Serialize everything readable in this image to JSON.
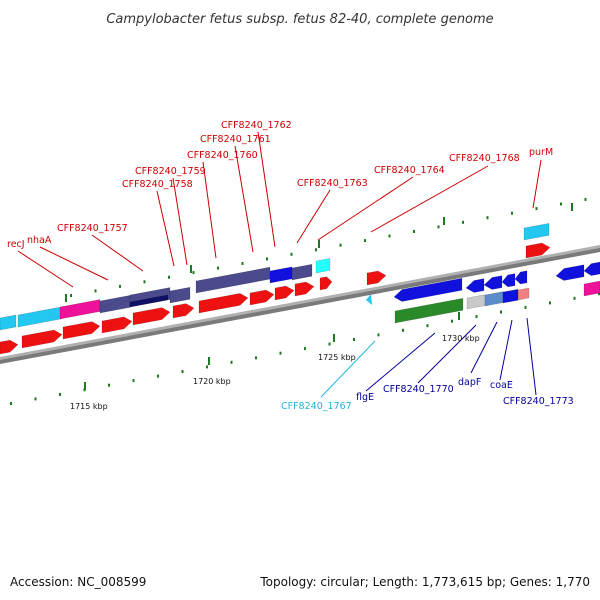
{
  "title": "Campylobacter fetus subsp. fetus 82-40, complete genome",
  "footer": {
    "accession": "Accession: NC_008599",
    "summary": "Topology: circular; Length: 1,773,615 bp; Genes: 1,770"
  },
  "colors": {
    "backbone": "#808080",
    "tick": "#1e7a1e",
    "upper_label": "#cc0000",
    "lower_label": "#00009a",
    "cyan_label": "#22b5dd",
    "red": "#ee1111",
    "cyan": "#22c8f0",
    "pink": "#ee1199",
    "slate": "#4a4a8c",
    "navy": "#101066",
    "blue": "#1111dd",
    "green": "#2a8a2a",
    "gray": "#c8c8c8",
    "steel": "#5b8ccc",
    "salmon": "#f08080",
    "aqua": "#22ffff"
  },
  "scale_labels": [
    {
      "text": "1715 kbp"
    },
    {
      "text": "1720 kbp"
    },
    {
      "text": "1725 kbp"
    },
    {
      "text": "1730 kbp"
    }
  ],
  "upper_gene_labels": [
    {
      "text": "recJ"
    },
    {
      "text": "nhaA"
    },
    {
      "text": "CFF8240_1757"
    },
    {
      "text": "CFF8240_1758"
    },
    {
      "text": "CFF8240_1759"
    },
    {
      "text": "CFF8240_1760"
    },
    {
      "text": "CFF8240_1761"
    },
    {
      "text": "CFF8240_1762"
    },
    {
      "text": "CFF8240_1763"
    },
    {
      "text": "CFF8240_1764"
    },
    {
      "text": "CFF8240_1768"
    },
    {
      "text": "purM"
    }
  ],
  "lower_gene_labels": [
    {
      "text": "CFF8240_1767",
      "color": "cyan"
    },
    {
      "text": "flgE",
      "color": "blue"
    },
    {
      "text": "CFF8240_1770",
      "color": "blue"
    },
    {
      "text": "dapF",
      "color": "blue"
    },
    {
      "text": "coaE",
      "color": "blue"
    },
    {
      "text": "CFF8240_1773",
      "color": "blue"
    }
  ]
}
